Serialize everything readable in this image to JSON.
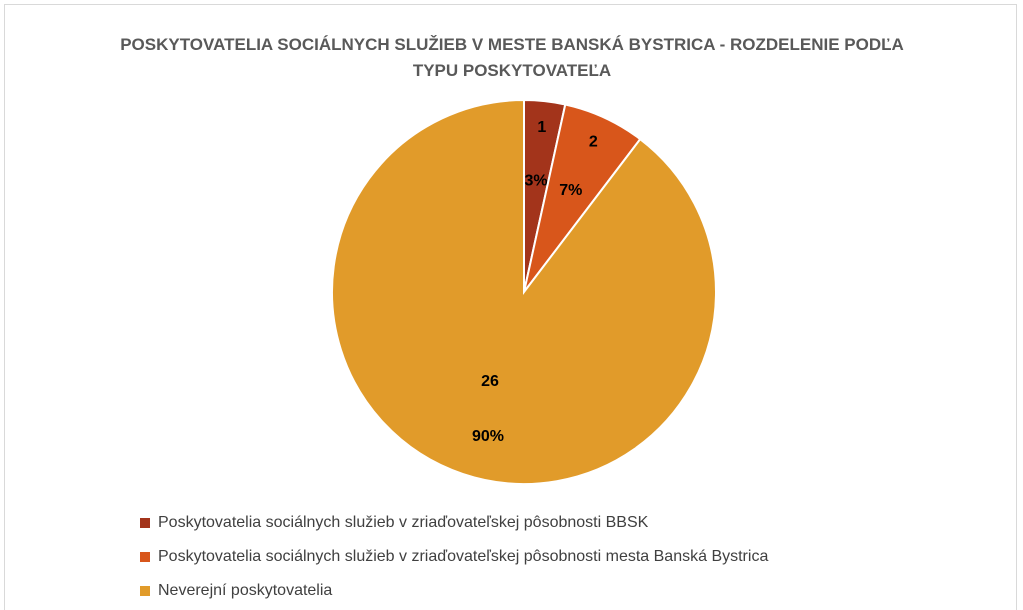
{
  "chart_data": {
    "type": "pie",
    "title": "POSKYTOVATELIA SOCIÁLNYCH SLUŽIEB V MESTE BANSKÁ BYSTRICA - ROZDELENIE PODĽA TYPU POSKYTOVATEĽA",
    "categories": [
      "Poskytovatelia sociálnych služieb v zriaďovateľskej pôsobnosti BBSK",
      "Poskytovatelia sociálnych služieb v zriaďovateľskej pôsobnosti mesta Banská Bystrica",
      "Neverejní poskytovatelia"
    ],
    "values": [
      1,
      2,
      26
    ],
    "percent_labels": [
      "3%",
      "7%",
      "90%"
    ],
    "colors": [
      "#a3341b",
      "#d8561b",
      "#e19b2a"
    ],
    "legend": "bottom"
  }
}
